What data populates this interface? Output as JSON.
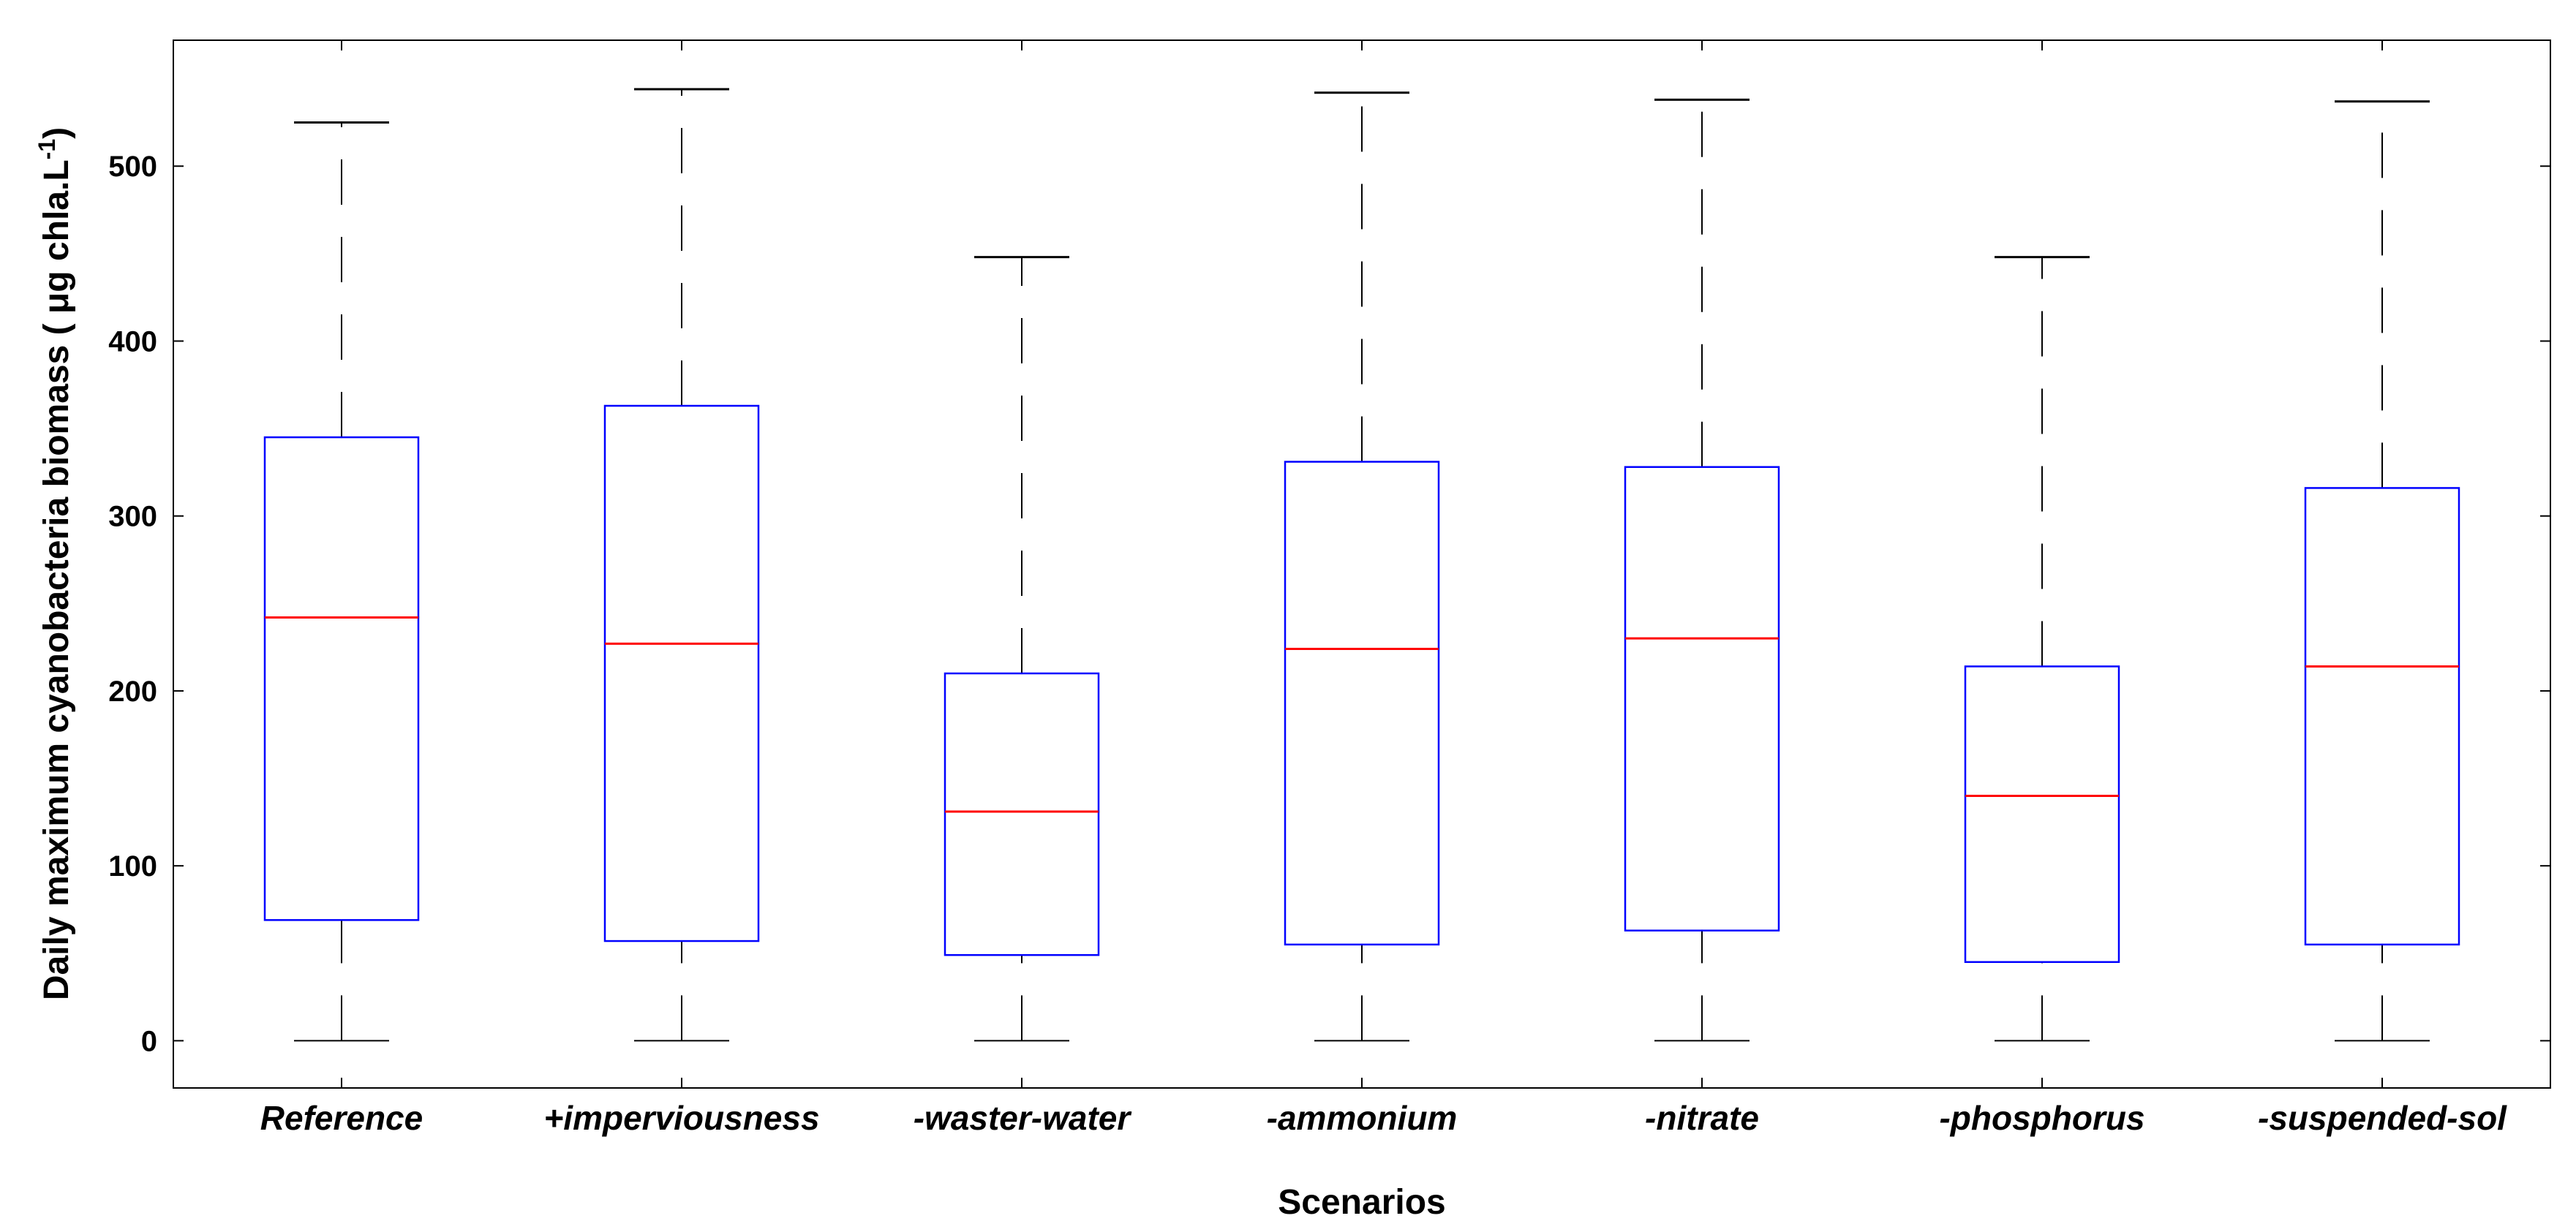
{
  "chart_data": {
    "type": "box",
    "title": "",
    "xlabel": "Scenarios",
    "ylabel": "Daily maximum cyanobacteria biomass ( μg chla.L",
    "ylabel_superscript": "-1",
    "ylabel_close": ")",
    "ylim": [
      -27,
      572
    ],
    "yticks": [
      0,
      100,
      200,
      300,
      400,
      500
    ],
    "grid": false,
    "colors": {
      "box": "#0000ff",
      "median": "#ff0000",
      "whisker": "#000000",
      "axis": "#000000"
    },
    "categories": [
      "Reference",
      "+imperviousness",
      "-waster-water",
      "-ammonium",
      "-nitrate",
      "-phosphorus",
      "-suspended-sol"
    ],
    "boxes": [
      {
        "min": 0,
        "q1": 69,
        "median": 242,
        "q3": 345,
        "max": 525
      },
      {
        "min": 0,
        "q1": 57,
        "median": 227,
        "q3": 363,
        "max": 544
      },
      {
        "min": 0,
        "q1": 49,
        "median": 131,
        "q3": 210,
        "max": 448
      },
      {
        "min": 0,
        "q1": 55,
        "median": 224,
        "q3": 331,
        "max": 542
      },
      {
        "min": 0,
        "q1": 63,
        "median": 230,
        "q3": 328,
        "max": 538
      },
      {
        "min": 0,
        "q1": 45,
        "median": 140,
        "q3": 214,
        "max": 448
      },
      {
        "min": 0,
        "q1": 55,
        "median": 214,
        "q3": 316,
        "max": 537
      }
    ]
  }
}
